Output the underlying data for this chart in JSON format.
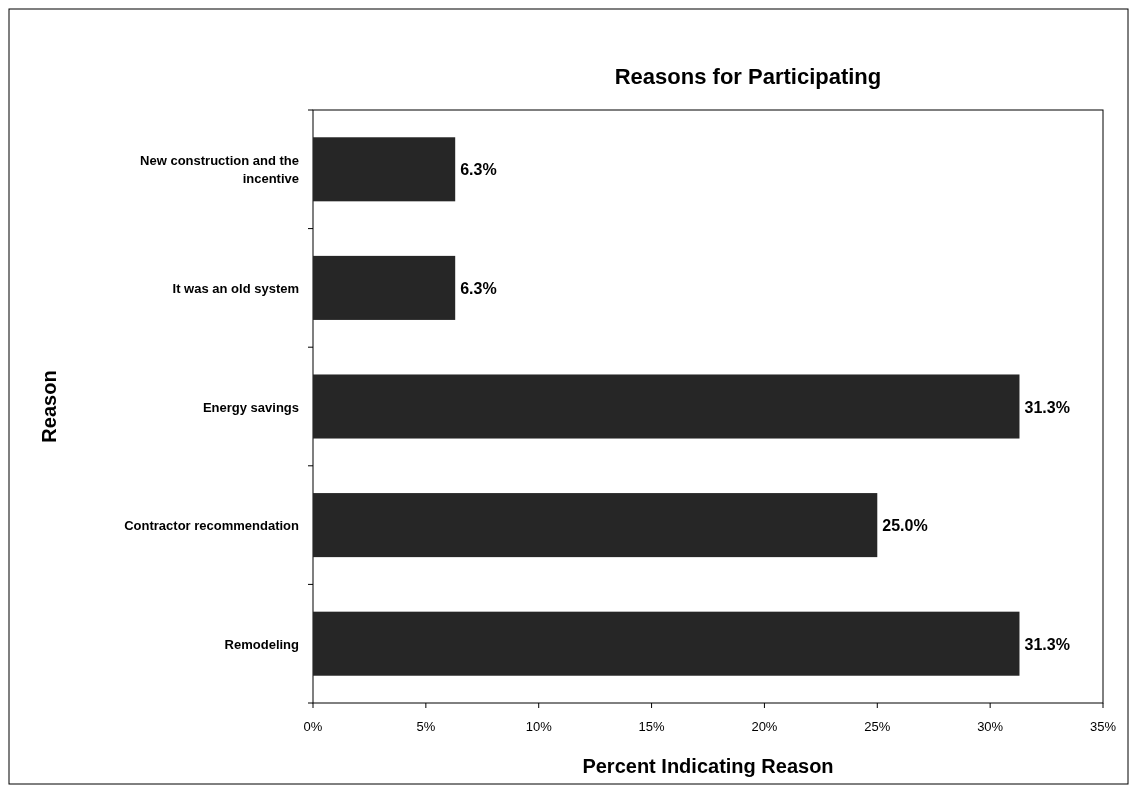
{
  "chart_data": {
    "type": "bar",
    "orientation": "horizontal",
    "title": "Reasons for Participating",
    "xlabel": "Percent Indicating Reason",
    "ylabel": "Reason",
    "categories": [
      "New construction and the incentive",
      "It was an old system",
      "Energy savings",
      "Contractor recommendation",
      "Remodeling"
    ],
    "values": [
      6.3,
      6.3,
      31.3,
      25.0,
      31.3
    ],
    "value_labels": [
      "6.3%",
      "6.3%",
      "31.3%",
      "25.0%",
      "31.3%"
    ],
    "color": "#262626",
    "xlim": [
      0,
      35
    ],
    "xticks": [
      {
        "value": 0,
        "label": "0%"
      },
      {
        "value": 5,
        "label": "5%"
      },
      {
        "value": 10,
        "label": "10%"
      },
      {
        "value": 15,
        "label": "15%"
      },
      {
        "value": 20,
        "label": "20%"
      },
      {
        "value": 25,
        "label": "25%"
      },
      {
        "value": 30,
        "label": "30%"
      },
      {
        "value": 35,
        "label": "35%"
      }
    ],
    "grid": false
  }
}
